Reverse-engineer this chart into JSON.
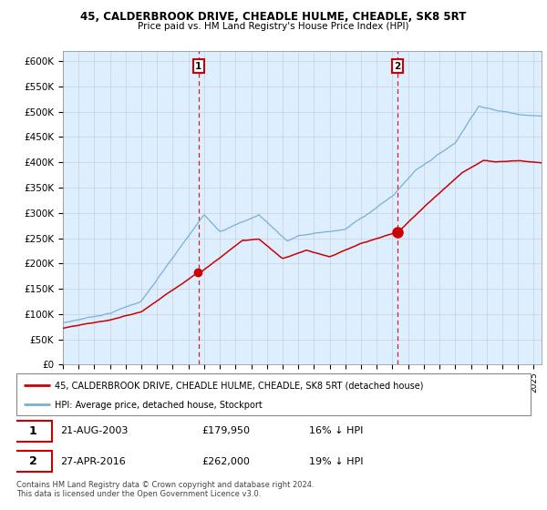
{
  "title1": "45, CALDERBROOK DRIVE, CHEADLE HULME, CHEADLE, SK8 5RT",
  "title2": "Price paid vs. HM Land Registry's House Price Index (HPI)",
  "legend_line1": "45, CALDERBROOK DRIVE, CHEADLE HULME, CHEADLE, SK8 5RT (detached house)",
  "legend_line2": "HPI: Average price, detached house, Stockport",
  "annotation1_label": "1",
  "annotation1_date": "21-AUG-2003",
  "annotation1_price": "£179,950",
  "annotation1_hpi": "16% ↓ HPI",
  "annotation2_label": "2",
  "annotation2_date": "27-APR-2016",
  "annotation2_price": "£262,000",
  "annotation2_hpi": "19% ↓ HPI",
  "footer": "Contains HM Land Registry data © Crown copyright and database right 2024.\nThis data is licensed under the Open Government Licence v3.0.",
  "red_color": "#cc0000",
  "blue_color": "#7ab0d4",
  "bg_color": "#ddeeff",
  "purchase1_year": 2003.644,
  "purchase1_value": 179950,
  "purchase2_year": 2016.322,
  "purchase2_value": 262000,
  "ylim_max": 620000
}
